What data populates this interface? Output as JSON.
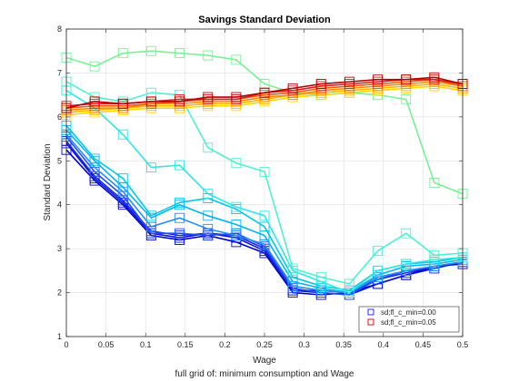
{
  "chart_data": {
    "type": "line",
    "title": "Savings Standard Deviation",
    "xlabel": "Wage",
    "ylabel": "Standard Deviation",
    "caption": "full grid of: minimum consumption and Wage",
    "xlim": [
      0,
      0.5
    ],
    "ylim": [
      1,
      8
    ],
    "xticks": [
      0,
      0.05,
      0.1,
      0.15,
      0.2,
      0.25,
      0.3,
      0.35,
      0.4,
      0.45,
      0.5
    ],
    "xtick_labels": [
      "0",
      "0.05",
      "0.1",
      "0.15",
      "0.2",
      "0.25",
      "0.3",
      "0.35",
      "0.4",
      "0.45",
      "0.5"
    ],
    "yticks": [
      1,
      2,
      3,
      4,
      5,
      6,
      7,
      8
    ],
    "ytick_labels": [
      "1",
      "2",
      "3",
      "4",
      "5",
      "6",
      "7",
      "8"
    ],
    "grid": true,
    "marker": "square",
    "legend": {
      "location": "bottom-right",
      "entries": [
        {
          "label": "sd;fl_c_min=0.00",
          "color": "#1a1aff"
        },
        {
          "label": "sd;fl_c_min=0.05",
          "color": "#cc0000"
        }
      ]
    },
    "x": [
      0,
      0.0357,
      0.0714,
      0.1071,
      0.1429,
      0.1786,
      0.2143,
      0.25,
      0.2857,
      0.3214,
      0.3571,
      0.3929,
      0.4286,
      0.4643,
      0.5
    ],
    "series": [
      {
        "color": "#0000cc",
        "values": [
          5.25,
          4.55,
          4.0,
          3.3,
          3.2,
          3.3,
          3.15,
          2.9,
          2.0,
          1.95,
          2.0,
          2.2,
          2.4,
          2.6,
          2.65
        ]
      },
      {
        "color": "#0a14d9",
        "values": [
          5.4,
          4.6,
          4.05,
          3.35,
          3.25,
          3.35,
          3.25,
          2.95,
          2.05,
          2.0,
          1.95,
          2.2,
          2.4,
          2.55,
          2.7
        ]
      },
      {
        "color": "#1428e6",
        "values": [
          5.45,
          4.65,
          4.1,
          3.4,
          3.3,
          3.35,
          3.3,
          3.0,
          2.05,
          2.05,
          2.0,
          2.3,
          2.45,
          2.6,
          2.7
        ]
      },
      {
        "color": "#1e50f0",
        "values": [
          5.55,
          4.75,
          4.2,
          3.35,
          3.35,
          3.3,
          3.35,
          3.05,
          2.1,
          2.0,
          1.95,
          2.3,
          2.5,
          2.6,
          2.7
        ]
      },
      {
        "color": "#288cf5",
        "values": [
          5.6,
          4.85,
          4.3,
          3.5,
          3.7,
          3.45,
          3.3,
          3.1,
          2.15,
          2.05,
          2.0,
          2.35,
          2.5,
          2.6,
          2.7
        ]
      },
      {
        "color": "#00b4f0",
        "values": [
          5.7,
          5.0,
          4.4,
          3.7,
          4.0,
          3.75,
          3.55,
          3.3,
          2.25,
          2.1,
          2.0,
          2.4,
          2.6,
          2.65,
          2.75
        ]
      },
      {
        "color": "#00c8e6",
        "values": [
          5.8,
          5.05,
          4.6,
          3.75,
          4.05,
          4.15,
          3.9,
          3.5,
          2.35,
          2.15,
          2.05,
          2.5,
          2.65,
          2.7,
          2.8
        ]
      },
      {
        "color": "#30e6e6",
        "values": [
          6.6,
          6.2,
          5.6,
          4.85,
          4.9,
          4.25,
          3.95,
          3.75,
          2.5,
          2.25,
          2.0,
          2.5,
          2.65,
          2.75,
          2.8
        ]
      },
      {
        "color": "#50f0d0",
        "values": [
          6.8,
          6.45,
          6.35,
          6.55,
          6.5,
          5.3,
          4.95,
          4.75,
          2.55,
          2.35,
          2.2,
          2.95,
          3.35,
          2.85,
          2.9
        ]
      },
      {
        "color": "#78f096",
        "values": [
          7.35,
          7.15,
          7.45,
          7.5,
          7.45,
          7.4,
          7.3,
          6.75,
          6.55,
          6.5,
          6.55,
          6.5,
          6.4,
          4.5,
          4.25
        ]
      },
      {
        "color": "#ffd700",
        "values": [
          6.05,
          6.1,
          6.15,
          6.2,
          6.2,
          6.25,
          6.25,
          6.35,
          6.45,
          6.5,
          6.55,
          6.6,
          6.65,
          6.7,
          6.6
        ]
      },
      {
        "color": "#ffb400",
        "values": [
          6.1,
          6.15,
          6.2,
          6.25,
          6.25,
          6.3,
          6.3,
          6.4,
          6.5,
          6.55,
          6.6,
          6.65,
          6.7,
          6.75,
          6.65
        ]
      },
      {
        "color": "#ff8c00",
        "values": [
          6.15,
          6.2,
          6.2,
          6.3,
          6.3,
          6.35,
          6.35,
          6.45,
          6.5,
          6.6,
          6.65,
          6.7,
          6.75,
          6.8,
          6.7
        ]
      },
      {
        "color": "#f05a00",
        "values": [
          6.2,
          6.25,
          6.25,
          6.3,
          6.35,
          6.4,
          6.4,
          6.5,
          6.55,
          6.65,
          6.7,
          6.75,
          6.8,
          6.85,
          6.7
        ]
      },
      {
        "color": "#dc1e1e",
        "values": [
          6.25,
          6.3,
          6.3,
          6.35,
          6.4,
          6.4,
          6.4,
          6.55,
          6.6,
          6.7,
          6.75,
          6.8,
          6.85,
          6.85,
          6.75
        ]
      },
      {
        "color": "#b40000",
        "values": [
          6.2,
          6.35,
          6.3,
          6.35,
          6.35,
          6.45,
          6.45,
          6.55,
          6.65,
          6.75,
          6.8,
          6.85,
          6.85,
          6.9,
          6.75
        ]
      }
    ]
  }
}
